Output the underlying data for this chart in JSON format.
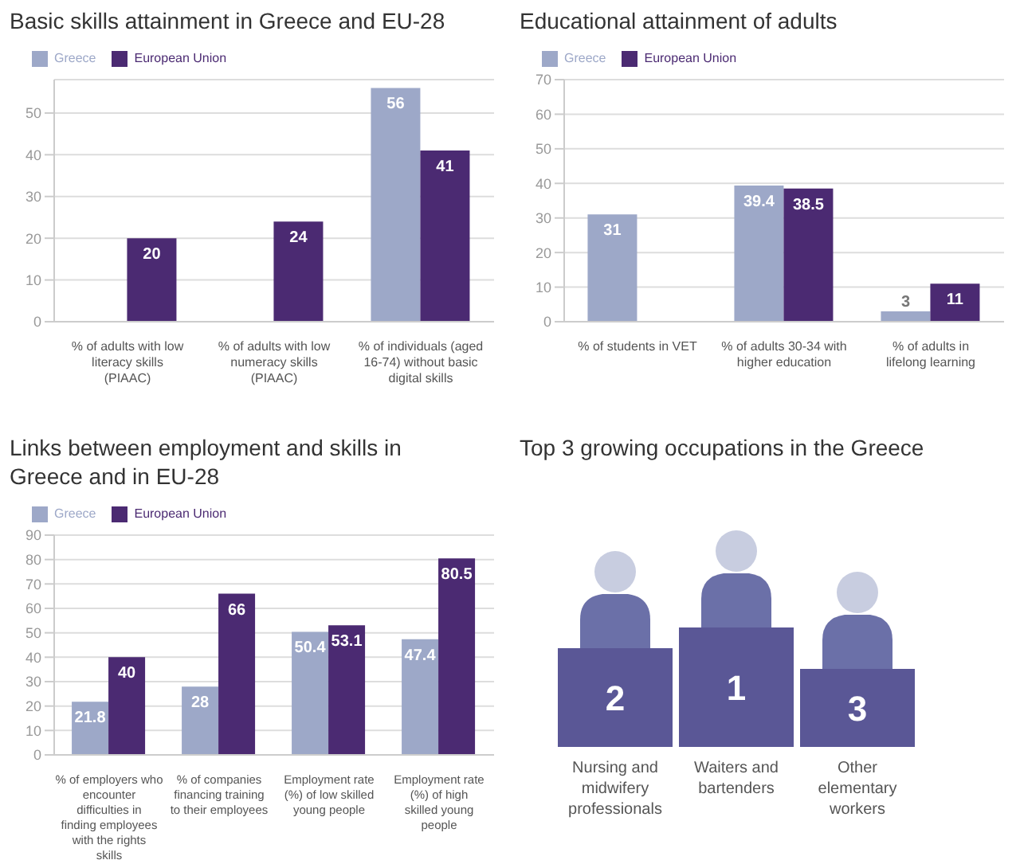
{
  "chart_data": [
    {
      "type": "bar",
      "title": "Basic skills attainment in Greece and EU-28",
      "categories": [
        "% of adults with low literacy skills (PIAAC)",
        "% of adults with low numeracy skills (PIAAC)",
        "% of individuals (aged 16-74) without basic digital skills"
      ],
      "series": [
        {
          "name": "Greece",
          "color": "#9da8c8",
          "values": [
            null,
            null,
            56
          ]
        },
        {
          "name": "European Union",
          "color": "#4b2a72",
          "values": [
            20,
            24,
            41
          ]
        }
      ],
      "ylim": [
        0,
        58
      ],
      "yticks": [
        0,
        10,
        20,
        30,
        40,
        50
      ],
      "grid": "y",
      "legend": "top left",
      "data_labels": true
    },
    {
      "type": "bar",
      "title": "Educational attainment of adults",
      "categories": [
        "% of students in VET",
        "% of adults 30-34 with higher education",
        "% of adults in lifelong learning"
      ],
      "series": [
        {
          "name": "Greece",
          "color": "#9da8c8",
          "values": [
            31,
            39.4,
            3
          ]
        },
        {
          "name": "European Union",
          "color": "#4b2a72",
          "values": [
            null,
            38.5,
            11
          ]
        }
      ],
      "ylim": [
        0,
        70
      ],
      "yticks": [
        0,
        10,
        20,
        30,
        40,
        50,
        60,
        70
      ],
      "grid": "y",
      "legend": "top left",
      "data_labels": true
    },
    {
      "type": "bar",
      "title": "Links between employment and skills in Greece and in EU-28",
      "categories": [
        "% of employers who encounter difficulties in finding employees with the rights skills",
        "% of companies financing training to their employees",
        "Employment rate (%) of low skilled young people",
        "Employment rate (%) of high skilled young people"
      ],
      "series": [
        {
          "name": "Greece",
          "color": "#9da8c8",
          "values": [
            21.8,
            28,
            50.4,
            47.4
          ]
        },
        {
          "name": "European Union",
          "color": "#4b2a72",
          "values": [
            40,
            66,
            53.1,
            80.5
          ]
        }
      ],
      "ylim": [
        0,
        90
      ],
      "yticks": [
        0,
        10,
        20,
        30,
        40,
        50,
        60,
        70,
        80,
        90
      ],
      "grid": "y",
      "legend": "top left",
      "data_labels": true
    },
    {
      "type": "other",
      "title": "Top 3 growing occupations in the Greece",
      "categories": [
        "Nursing and midwifery professionals",
        "Waiters and bartenders",
        "Other elementary workers"
      ],
      "values": [
        2,
        1,
        3
      ],
      "data_labels": true
    }
  ]
}
